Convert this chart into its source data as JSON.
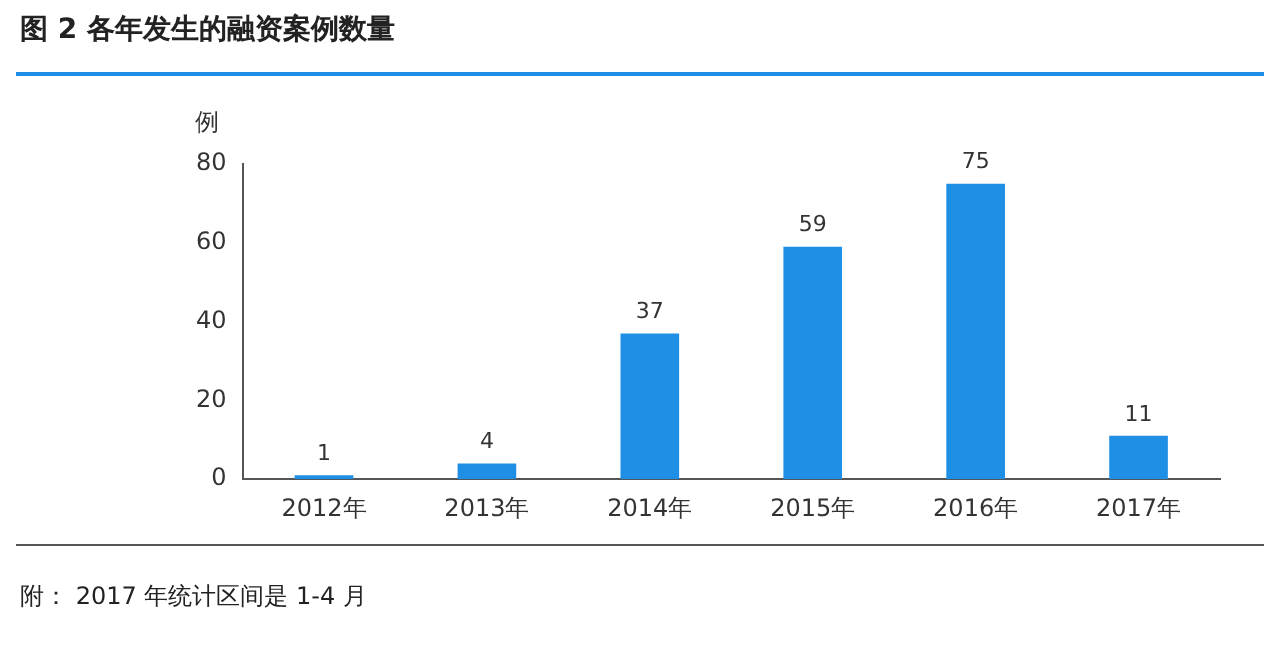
{
  "chart_data": {
    "type": "bar",
    "title": "图 2 各年发生的融资案例数量",
    "ylabel": "例",
    "categories": [
      "2012年",
      "2013年",
      "2014年",
      "2015年",
      "2016年",
      "2017年"
    ],
    "values": [
      1,
      4,
      37,
      59,
      75,
      11
    ],
    "color": "#1f8fe5",
    "ylim": [
      0,
      80
    ],
    "yticks": [
      0,
      20,
      40,
      60,
      80
    ],
    "grid": false,
    "data_labels": true,
    "annotations": [
      "附： 2017 年统计区间是 1-4 月"
    ]
  }
}
